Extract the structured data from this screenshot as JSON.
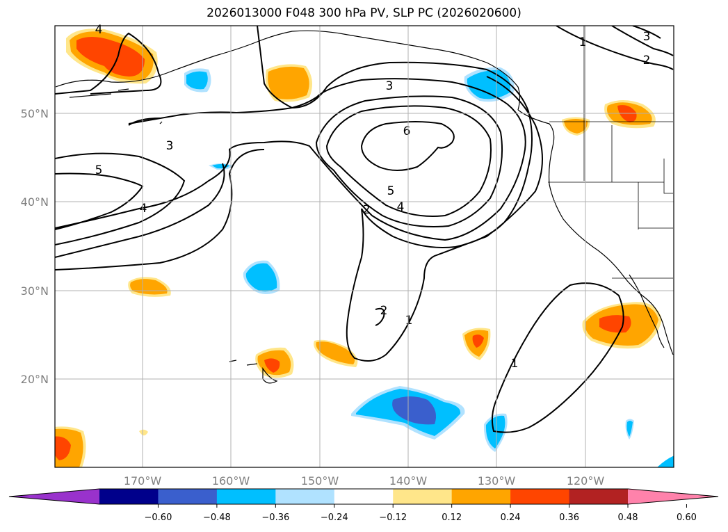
{
  "title": "2026013000 F048 300 hPa PV, SLP PC (2026020600)",
  "lat_labels": [
    "50°N",
    "40°N",
    "30°N",
    "20°N"
  ],
  "lon_labels": [
    "170°W",
    "160°W",
    "150°W",
    "140°W",
    "130°W",
    "120°W"
  ],
  "colorbar": {
    "ticks": [
      "−0.60",
      "−0.48",
      "−0.36",
      "−0.24",
      "−0.12",
      "0.12",
      "0.24",
      "0.36",
      "0.48",
      "0.60"
    ],
    "colors": [
      "#9932cc",
      "#00008b",
      "#3a5fcd",
      "#00bfff",
      "#b0e2ff",
      "#ffffff",
      "#ffe68a",
      "#ffa500",
      "#ff4500",
      "#b22222",
      "#ff82ab"
    ]
  },
  "contour_labels": [
    "4",
    "3",
    "2",
    "1",
    "3",
    "6",
    "5",
    "4",
    "2",
    "5",
    "4",
    "3",
    "1",
    "2",
    "1"
  ],
  "colors": {
    "cyan": "#00bfff",
    "light_blue": "#b0e2ff",
    "royal_blue": "#3a5fcd",
    "light_yellow": "#ffe68a",
    "orange": "#ffa500",
    "orange_red": "#ff4500",
    "grid": "#b0b0b0"
  }
}
